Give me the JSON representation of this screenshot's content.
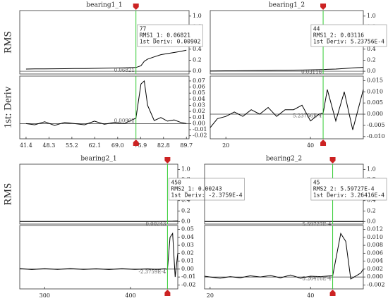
{
  "chart_data": [
    {
      "type": "line",
      "title": "bearing1_1",
      "ylabel": "RMS",
      "color": "#000000",
      "cursor_color": "#33cc33",
      "x": [
        41.4,
        44,
        47,
        50,
        53,
        56,
        59,
        62,
        65,
        68,
        71,
        74.5,
        76,
        77,
        78,
        80,
        82,
        84,
        86,
        88,
        89.7
      ],
      "values": [
        0.04,
        0.042,
        0.043,
        0.045,
        0.046,
        0.048,
        0.05,
        0.052,
        0.055,
        0.058,
        0.062,
        0.068,
        0.1,
        0.18,
        0.22,
        0.26,
        0.3,
        0.32,
        0.34,
        0.36,
        0.38
      ],
      "xlim": [
        39.5,
        90.5
      ],
      "ylim": [
        -0.05,
        1.1
      ],
      "yticks": [
        {
          "value": 0,
          "label": "0.0"
        },
        0.2,
        0.4,
        0.6,
        0.8,
        {
          "value": 1,
          "label": "1.0"
        }
      ],
      "cursor_x": 74.5,
      "cursor_label": "0.06821",
      "tooltip": [
        "77",
        "RMS1_1: 0.06821",
        "1st Deriv: 0.00902"
      ]
    },
    {
      "type": "line",
      "ylabel": "1st: Deriv",
      "color": "#000000",
      "cursor_color": "#33cc33",
      "x": [
        41.4,
        44,
        47,
        50,
        53,
        56,
        59,
        62,
        65,
        68,
        71,
        74.5,
        76,
        77,
        78,
        80,
        82,
        84,
        86,
        88,
        89.7
      ],
      "values": [
        0.0,
        -0.002,
        0.003,
        -0.003,
        0.002,
        0.0,
        -0.002,
        0.004,
        -0.001,
        0.002,
        0.0,
        0.009,
        0.065,
        0.07,
        0.03,
        0.005,
        0.01,
        0.004,
        0.006,
        0.002,
        0.0
      ],
      "xlim": [
        39.5,
        90.5
      ],
      "ylim": [
        -0.025,
        0.078
      ],
      "xticks": [
        41.4,
        48.3,
        55.2,
        62.1,
        {
          "value": 69,
          "label": "69.0"
        },
        75.9,
        82.8,
        89.7
      ],
      "yticks": [
        -0.02,
        -0.01,
        {
          "value": 0,
          "label": "0.00"
        },
        0.01,
        0.02,
        0.03,
        0.04,
        0.05,
        0.06,
        0.07
      ],
      "cursor_x": 74.5,
      "cursor_label": "0.00902"
    },
    {
      "type": "line",
      "title": "bearing1_2",
      "color": "#000000",
      "cursor_color": "#33cc33",
      "x": [
        16.3,
        18,
        20,
        22,
        24,
        26,
        28,
        30,
        32,
        34,
        36,
        38,
        40,
        42,
        43,
        44,
        46,
        48,
        50,
        52.5
      ],
      "values": [
        0.005,
        0.006,
        0.007,
        0.008,
        0.009,
        0.01,
        0.012,
        0.014,
        0.016,
        0.018,
        0.02,
        0.022,
        0.025,
        0.028,
        0.031,
        0.034,
        0.04,
        0.05,
        0.06,
        0.07
      ],
      "xlim": [
        16.3,
        52.5
      ],
      "ylim": [
        -0.05,
        1.1
      ],
      "yticks": [
        {
          "value": 0,
          "label": "0.0"
        },
        0.2,
        0.4,
        0.6,
        0.8,
        {
          "value": 1,
          "label": "1.0"
        }
      ],
      "cursor_x": 43,
      "cursor_label": "0.03116",
      "tooltip": [
        "44",
        "RMS1_2: 0.03116",
        "1st Deriv: 5.23756E-4"
      ]
    },
    {
      "type": "line",
      "color": "#000000",
      "cursor_color": "#33cc33",
      "x": [
        16.3,
        18,
        20,
        22,
        24,
        26,
        28,
        30,
        32,
        34,
        36,
        38,
        40,
        42,
        43,
        44,
        46,
        48,
        50,
        52.5
      ],
      "values": [
        -0.006,
        -0.002,
        -0.001,
        0.001,
        -0.001,
        0.002,
        0.0,
        0.003,
        -0.001,
        0.002,
        0.002,
        0.004,
        -0.003,
        0.0,
        0.0005,
        0.011,
        -0.003,
        0.01,
        -0.007,
        0.011
      ],
      "xlim": [
        16.3,
        52.5
      ],
      "ylim": [
        -0.011,
        0.017
      ],
      "xticks": [
        20,
        40
      ],
      "yticks": [
        {
          "value": -0.01,
          "label": "-0.010"
        },
        -0.005,
        {
          "value": 0,
          "label": "0.000"
        },
        0.005,
        {
          "value": 0.01,
          "label": "0.010"
        },
        0.015
      ],
      "cursor_x": 43,
      "cursor_label": "5.23756E-4"
    },
    {
      "type": "line",
      "title": "bearing2_1",
      "ylabel": "RMS",
      "color": "#000000",
      "cursor_color": "#33cc33",
      "x": [
        271,
        285,
        300,
        315,
        330,
        345,
        360,
        375,
        390,
        405,
        420,
        430,
        440,
        443,
        446,
        449,
        452,
        455
      ],
      "values": [
        0.002,
        0.002,
        0.002,
        0.002,
        0.002,
        0.002,
        0.002,
        0.002,
        0.002,
        0.002,
        0.002,
        0.002,
        0.0023,
        0.00243,
        0.004,
        0.006,
        0.008,
        0.01
      ],
      "xlim": [
        271,
        455
      ],
      "ylim": [
        -0.05,
        1.1
      ],
      "yticks": [
        {
          "value": 0,
          "label": "0.0"
        },
        0.2,
        0.4,
        0.6,
        0.8,
        {
          "value": 1,
          "label": "1.0"
        }
      ],
      "cursor_x": 443,
      "cursor_label": "0.00243",
      "tooltip": [
        "450",
        "RMS2_1: 0.00243",
        "1st Deriv: -2.3759E-4"
      ]
    },
    {
      "type": "line",
      "color": "#000000",
      "cursor_color": "#33cc33",
      "x": [
        271,
        285,
        300,
        315,
        330,
        345,
        360,
        375,
        390,
        405,
        420,
        430,
        440,
        443,
        446,
        449,
        452,
        455
      ],
      "values": [
        0.0005,
        -0.0005,
        0.0004,
        -0.0003,
        0.0005,
        -0.0004,
        0.0003,
        -0.0005,
        0.0004,
        -0.0003,
        0.0002,
        -0.0004,
        0.0003,
        -0.0002,
        0.04,
        0.045,
        -0.01,
        0.02
      ],
      "xlim": [
        271,
        455
      ],
      "ylim": [
        -0.025,
        0.055
      ],
      "xticks": [
        300,
        400
      ],
      "yticks": [
        -0.02,
        -0.01,
        {
          "value": 0,
          "label": "0.00"
        },
        0.01,
        0.02,
        0.03,
        0.04,
        0.05
      ],
      "cursor_x": 443,
      "cursor_label": "-2.3759E-4"
    },
    {
      "type": "line",
      "title": "bearing2_2",
      "color": "#000000",
      "cursor_color": "#33cc33",
      "x": [
        18.9,
        20,
        22,
        24,
        26,
        28,
        30,
        32,
        34,
        36,
        38,
        40,
        42,
        44,
        44.4,
        46,
        47,
        48,
        50,
        50.5
      ],
      "values": [
        0.0005,
        0.0005,
        0.0005,
        0.0005,
        0.0005,
        0.0005,
        0.0005,
        0.0005,
        0.0005,
        0.0005,
        0.0005,
        0.0005,
        0.00055,
        0.00056,
        0.00056,
        0.0008,
        0.001,
        0.0012,
        0.0014,
        0.0015
      ],
      "xlim": [
        18.9,
        50.5
      ],
      "ylim": [
        -0.05,
        1.1
      ],
      "yticks": [
        {
          "value": 0,
          "label": "0.0"
        },
        0.2,
        0.4,
        0.6,
        0.8,
        {
          "value": 1,
          "label": "1.0"
        }
      ],
      "cursor_x": 44.4,
      "cursor_label": "5.59727E-4",
      "tooltip": [
        "45",
        "RMS2_2: 5.59727E-4",
        "1st Deriv: 3.26416E-4"
      ]
    },
    {
      "type": "line",
      "color": "#000000",
      "cursor_color": "#33cc33",
      "x": [
        18.9,
        20,
        22,
        24,
        26,
        28,
        30,
        32,
        34,
        36,
        38,
        40,
        42,
        44,
        44.4,
        46,
        47,
        48,
        50,
        50.5
      ],
      "values": [
        0.0002,
        0.0,
        -0.0003,
        0.0001,
        -0.0002,
        0.0003,
        0.0,
        0.0004,
        -0.0002,
        0.0005,
        -0.0003,
        0.0002,
        0.0001,
        0.0003,
        0.0003,
        0.011,
        0.009,
        -0.0005,
        0.001,
        0.002
      ],
      "xlim": [
        18.9,
        50.5
      ],
      "ylim": [
        -0.003,
        0.013
      ],
      "xticks": [
        20,
        40
      ],
      "yticks": [
        -0.002,
        {
          "value": 0,
          "label": "0.000"
        },
        0.002,
        0.004,
        0.006,
        0.008,
        {
          "value": 0.01,
          "label": "0.010"
        },
        0.012
      ],
      "cursor_x": 44.4,
      "cursor_label": "3.26416E-4"
    }
  ]
}
